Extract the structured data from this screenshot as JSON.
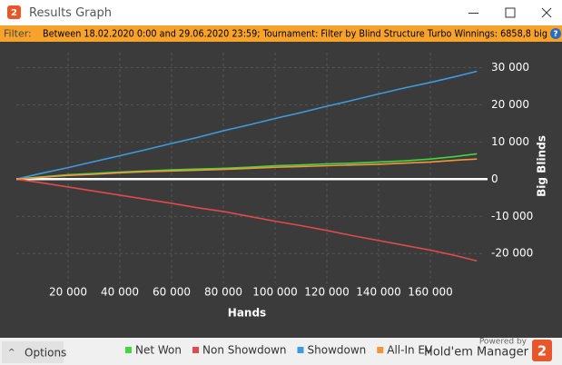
{
  "window": {
    "app_icon": "2",
    "title": "Results Graph"
  },
  "filter": {
    "label": "Filter:",
    "text": "Between 18.02.2020 0:00 and 29.06.2020 23:59; Tournament: Filter by Blind Structure  Turbo Winnings: 6858,8 big"
  },
  "chart_data": {
    "type": "line",
    "x_label": "Hands",
    "y_label": "Big Blinds",
    "x": [
      0,
      10000,
      20000,
      30000,
      40000,
      50000,
      60000,
      70000,
      80000,
      90000,
      100000,
      110000,
      120000,
      130000,
      140000,
      150000,
      160000,
      170000,
      178000
    ],
    "series": [
      {
        "name": "Net Won",
        "color": "#3fd93f",
        "values": [
          0,
          600,
          1200,
          1500,
          1900,
          2200,
          2500,
          2700,
          2900,
          3200,
          3600,
          3800,
          4100,
          4300,
          4600,
          4900,
          5400,
          6100,
          6800
        ]
      },
      {
        "name": "Non Showdown",
        "color": "#e04a4a",
        "values": [
          0,
          -1000,
          -2100,
          -3200,
          -4300,
          -5400,
          -6500,
          -7700,
          -8700,
          -10000,
          -11300,
          -12500,
          -13800,
          -15200,
          -16500,
          -17800,
          -19100,
          -20600,
          -22000
        ]
      },
      {
        "name": "Showdown",
        "color": "#3d9be0",
        "values": [
          0,
          1600,
          3100,
          4700,
          6300,
          7900,
          9600,
          11200,
          13000,
          14600,
          16300,
          17900,
          19600,
          21200,
          22900,
          24500,
          26000,
          27600,
          29000
        ]
      },
      {
        "name": "All-In EV",
        "color": "#f0963c",
        "values": [
          0,
          500,
          1000,
          1300,
          1700,
          2000,
          2200,
          2400,
          2600,
          2900,
          3200,
          3400,
          3600,
          3800,
          4000,
          4300,
          4600,
          5100,
          5400
        ]
      }
    ],
    "xlim": [
      0,
      180000
    ],
    "ylim": [
      -28000,
      34000
    ],
    "xticks": [
      {
        "value": 20000,
        "label": "20 000"
      },
      {
        "value": 40000,
        "label": "40 000"
      },
      {
        "value": 60000,
        "label": "60 000"
      },
      {
        "value": 80000,
        "label": "80 000"
      },
      {
        "value": 100000,
        "label": "100 000"
      },
      {
        "value": 120000,
        "label": "120 000"
      },
      {
        "value": 140000,
        "label": "140 000"
      },
      {
        "value": 160000,
        "label": "160 000"
      }
    ],
    "yticks": [
      {
        "value": -20000,
        "label": "-20 000"
      },
      {
        "value": -10000,
        "label": "-10 000"
      },
      0,
      {
        "value": 10000,
        "label": "10 000"
      },
      {
        "value": 20000,
        "label": "20 000"
      },
      {
        "value": 30000,
        "label": "30 000"
      }
    ],
    "grid": true,
    "legend": "bottom"
  },
  "footer": {
    "options": "Options",
    "powered_by": "Powered by",
    "brand": "Hold'em Manager",
    "logo": "2"
  }
}
